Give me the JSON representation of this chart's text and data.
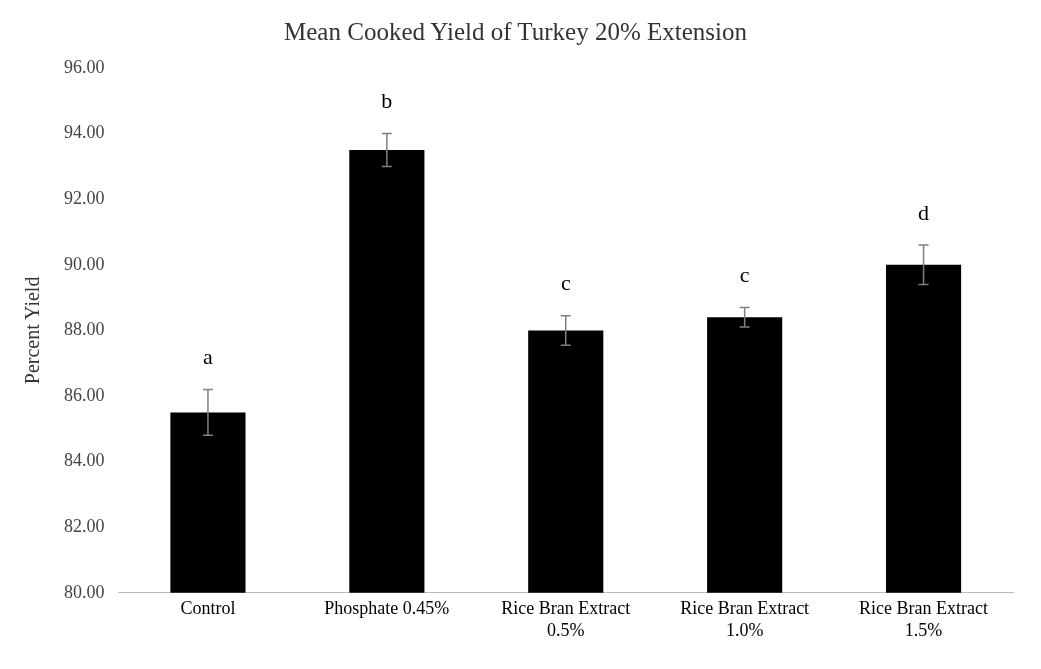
{
  "chart_data": {
    "type": "bar",
    "title": "Mean Cooked Yield of Turkey 20% Extension",
    "ylabel": "Percent Yield",
    "categories": [
      "Control",
      "Phosphate 0.45%",
      "Rice Bran Extract\n0.5%",
      "Rice Bran Extract\n1.0%",
      "Rice Bran Extract\n1.5%"
    ],
    "values": [
      85.5,
      93.5,
      88.0,
      88.4,
      90.0
    ],
    "color": "#000000",
    "errors": [
      0.7,
      0.5,
      0.45,
      0.3,
      0.6
    ],
    "ylim": [
      80,
      96
    ],
    "yticks": [
      {
        "value": 80,
        "label": "80.00"
      },
      {
        "value": 82,
        "label": "82.00"
      },
      {
        "value": 84,
        "label": "84.00"
      },
      {
        "value": 86,
        "label": "86.00"
      },
      {
        "value": 88,
        "label": "88.00"
      },
      {
        "value": 90,
        "label": "90.00"
      },
      {
        "value": 92,
        "label": "92.00"
      },
      {
        "value": 94,
        "label": "94.00"
      },
      {
        "value": 96,
        "label": "96.00"
      }
    ],
    "annotations": [
      "a",
      "b",
      "c",
      "c",
      "d"
    ],
    "grid": false,
    "legend": false
  }
}
